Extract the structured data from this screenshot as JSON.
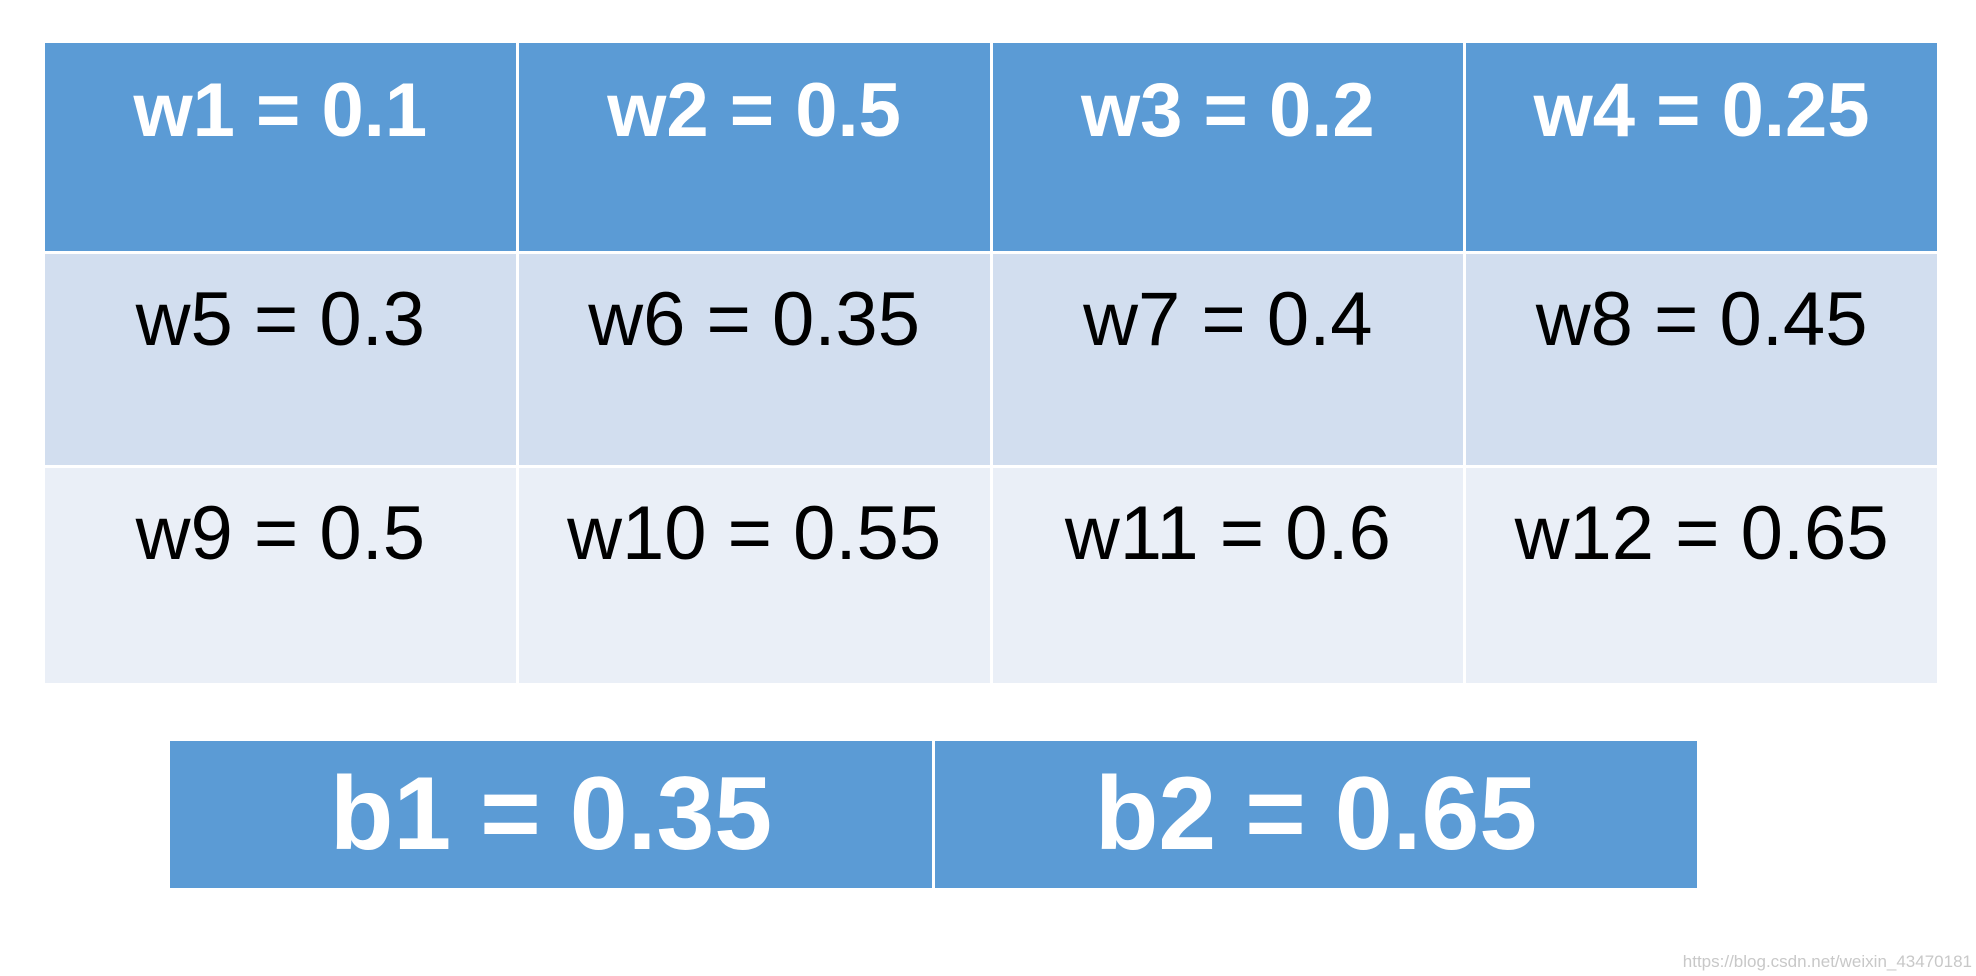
{
  "table": {
    "header": [
      "w1 = 0.1",
      "w2 = 0.5",
      "w3 = 0.2",
      "w4 = 0.25"
    ],
    "rows": [
      [
        "w5 = 0.3",
        "w6 = 0.35",
        "w7 = 0.4",
        "w8 = 0.45"
      ],
      [
        "w9 = 0.5",
        "w10 = 0.55",
        "w11 = 0.6",
        "w12 = 0.65"
      ]
    ]
  },
  "bias": {
    "cells": [
      "b1 = 0.35",
      "b2 = 0.65"
    ]
  },
  "watermark": "https://blog.csdn.net/weixin_43470181"
}
